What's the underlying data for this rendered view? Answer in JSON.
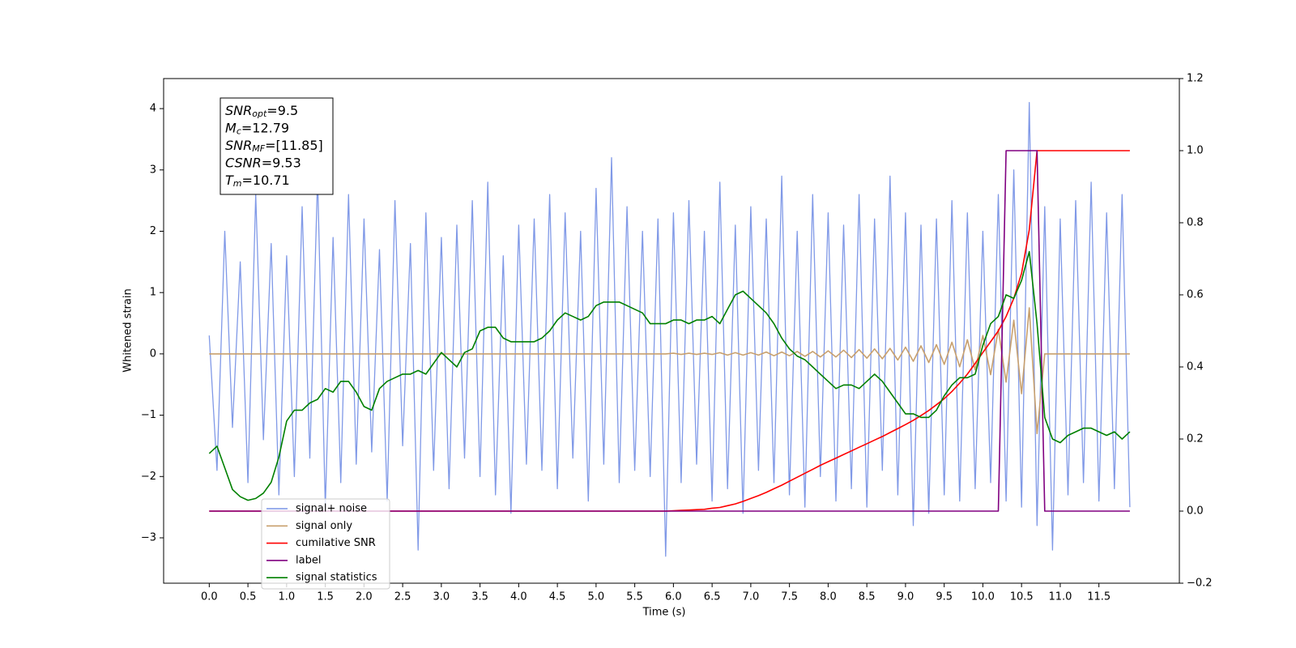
{
  "chart_data": {
    "type": "line",
    "xlabel": "Time (s)",
    "ylabel": "Whitened strain",
    "xlim": [
      -0.59,
      12.54
    ],
    "ylim": [
      -3.74,
      4.49
    ],
    "y2lim": [
      -0.2,
      1.2
    ],
    "xticks": [
      {
        "value": 0,
        "label": "0.0"
      },
      0.5,
      {
        "value": 1,
        "label": "1.0"
      },
      1.5,
      {
        "value": 2,
        "label": "2.0"
      },
      2.5,
      {
        "value": 3,
        "label": "3.0"
      },
      3.5,
      {
        "value": 4,
        "label": "4.0"
      },
      4.5,
      {
        "value": 5,
        "label": "5.0"
      },
      5.5,
      {
        "value": 6,
        "label": "6.0"
      },
      6.5,
      {
        "value": 7,
        "label": "7.0"
      },
      7.5,
      {
        "value": 8,
        "label": "8.0"
      },
      8.5,
      {
        "value": 9,
        "label": "9.0"
      },
      9.5,
      {
        "value": 10,
        "label": "10.0"
      },
      10.5,
      {
        "value": 11,
        "label": "11.0"
      },
      11.5
    ],
    "yticks": [
      {
        "value": -3,
        "label": "−3"
      },
      {
        "value": -2,
        "label": "−2"
      },
      {
        "value": -1,
        "label": "−1"
      },
      0,
      1,
      2,
      3,
      4
    ],
    "y2ticks": [
      {
        "value": -0.2,
        "label": "−0.2"
      },
      {
        "value": 0,
        "label": "0.0"
      },
      0.2,
      0.4,
      0.6,
      0.8,
      {
        "value": 1,
        "label": "1.0"
      },
      1.2
    ],
    "legend": "lower left",
    "annotation": [
      [
        "SNR",
        "opt",
        "=9.5"
      ],
      [
        "M",
        "c",
        "=12.79"
      ],
      [
        "SNR",
        "MF",
        "=[11.85]"
      ],
      [
        "CSNR",
        "",
        "=9.53"
      ],
      [
        "T",
        "m",
        "=10.71"
      ]
    ],
    "x": [
      0,
      0.1,
      0.2,
      0.3,
      0.4,
      0.5,
      0.6,
      0.7,
      0.8,
      0.9,
      1,
      1.1,
      1.2,
      1.3,
      1.4,
      1.5,
      1.6,
      1.7,
      1.8,
      1.9,
      2,
      2.1,
      2.2,
      2.3,
      2.4,
      2.5,
      2.6,
      2.7,
      2.8,
      2.9,
      3,
      3.1,
      3.2,
      3.3,
      3.4,
      3.5,
      3.6,
      3.7,
      3.8,
      3.9,
      4,
      4.1,
      4.2,
      4.3,
      4.4,
      4.5,
      4.6,
      4.7,
      4.8,
      4.9,
      5,
      5.1,
      5.2,
      5.3,
      5.4,
      5.5,
      5.6,
      5.7,
      5.8,
      5.9,
      6,
      6.1,
      6.2,
      6.3,
      6.4,
      6.5,
      6.6,
      6.7,
      6.8,
      6.9,
      7,
      7.1,
      7.2,
      7.3,
      7.4,
      7.5,
      7.6,
      7.7,
      7.8,
      7.9,
      8,
      8.1,
      8.2,
      8.3,
      8.4,
      8.5,
      8.6,
      8.7,
      8.8,
      8.9,
      9,
      9.1,
      9.2,
      9.3,
      9.4,
      9.5,
      9.6,
      9.7,
      9.8,
      9.9,
      10,
      10.1,
      10.2,
      10.3,
      10.4,
      10.5,
      10.6,
      10.7,
      10.8,
      10.9,
      11,
      11.1,
      11.2,
      11.3,
      11.4,
      11.5,
      11.6,
      11.7,
      11.8,
      11.9
    ],
    "series": [
      {
        "name": "signal+ noise",
        "color": "#7994e6",
        "values": [
          0.3,
          -1.9,
          2.0,
          -1.2,
          1.5,
          -2.1,
          2.6,
          -1.4,
          1.8,
          -2.3,
          1.6,
          -2.0,
          2.4,
          -1.7,
          2.9,
          -2.5,
          1.9,
          -2.1,
          2.6,
          -1.8,
          2.2,
          -1.6,
          1.7,
          -2.4,
          2.5,
          -1.5,
          1.8,
          -3.2,
          2.3,
          -1.9,
          1.9,
          -2.2,
          2.1,
          -1.7,
          2.5,
          -2.0,
          2.8,
          -2.3,
          1.6,
          -2.6,
          2.1,
          -1.8,
          2.2,
          -1.9,
          2.6,
          -2.2,
          2.3,
          -1.7,
          2.0,
          -2.4,
          2.7,
          -1.8,
          3.2,
          -2.1,
          2.4,
          -1.9,
          2.0,
          -2.0,
          2.2,
          -3.3,
          2.3,
          -2.1,
          2.5,
          -1.8,
          2.0,
          -2.4,
          2.8,
          -2.2,
          2.1,
          -2.6,
          2.4,
          -1.9,
          2.2,
          -2.1,
          2.9,
          -2.3,
          2.0,
          -2.5,
          2.6,
          -2.0,
          2.3,
          -2.4,
          2.1,
          -2.2,
          2.6,
          -2.5,
          2.2,
          -1.9,
          2.9,
          -2.3,
          2.3,
          -2.8,
          2.1,
          -2.6,
          2.2,
          -2.3,
          2.5,
          -2.4,
          2.3,
          -2.2,
          2.0,
          -2.1,
          2.6,
          -2.4,
          3.0,
          -2.5,
          4.1,
          -2.8,
          2.4,
          -3.2,
          2.2,
          -2.3,
          2.5,
          -2.1,
          2.8,
          -2.4,
          2.3,
          -2.2,
          2.6,
          -2.5
        ]
      },
      {
        "name": "signal only",
        "color": "#c8a06e",
        "values": [
          0,
          0,
          0,
          0,
          0,
          0,
          0,
          0,
          0,
          0,
          0,
          0,
          0,
          0,
          0,
          0,
          0,
          0,
          0,
          0,
          0,
          0,
          0,
          0,
          0,
          0,
          0,
          0,
          0,
          0,
          0,
          0,
          0,
          0,
          0,
          0,
          0,
          0,
          0,
          0,
          0,
          0,
          0,
          0,
          0,
          0,
          0,
          0,
          0,
          0,
          0,
          0,
          0,
          0,
          0,
          0,
          0,
          0,
          0,
          0,
          0.01,
          -0.01,
          0.01,
          -0.01,
          0.01,
          -0.01,
          0.02,
          -0.02,
          0.02,
          -0.02,
          0.02,
          -0.02,
          0.03,
          -0.03,
          0.03,
          -0.03,
          0.04,
          -0.04,
          0.04,
          -0.05,
          0.05,
          -0.05,
          0.06,
          -0.06,
          0.07,
          -0.07,
          0.08,
          -0.08,
          0.09,
          -0.1,
          0.11,
          -0.12,
          0.13,
          -0.14,
          0.15,
          -0.17,
          0.19,
          -0.21,
          0.23,
          -0.26,
          0.3,
          -0.34,
          0.4,
          -0.46,
          0.55,
          -0.65,
          0.75,
          -1.3,
          0,
          0,
          0,
          0,
          0,
          0,
          0,
          0,
          0,
          0,
          0,
          0
        ]
      },
      {
        "name": "cumilative SNR",
        "color": "#ff0000",
        "axis": "y2",
        "values": [
          0,
          0,
          0,
          0,
          0,
          0,
          0,
          0,
          0,
          0,
          0,
          0,
          0,
          0,
          0,
          0,
          0,
          0,
          0,
          0,
          0,
          0,
          0,
          0,
          0,
          0,
          0,
          0,
          0,
          0,
          0,
          0,
          0,
          0,
          0,
          0,
          0,
          0,
          0,
          0,
          0,
          0,
          0,
          0,
          0,
          0,
          0,
          0,
          0,
          0,
          0,
          0,
          0,
          0,
          0,
          0,
          0,
          0,
          0,
          0,
          0.001,
          0.002,
          0.003,
          0.004,
          0.005,
          0.008,
          0.01,
          0.015,
          0.02,
          0.027,
          0.035,
          0.043,
          0.052,
          0.062,
          0.072,
          0.083,
          0.094,
          0.105,
          0.116,
          0.127,
          0.137,
          0.147,
          0.157,
          0.167,
          0.177,
          0.187,
          0.197,
          0.207,
          0.218,
          0.229,
          0.24,
          0.252,
          0.265,
          0.279,
          0.295,
          0.312,
          0.332,
          0.355,
          0.38,
          0.41,
          0.44,
          0.47,
          0.5,
          0.54,
          0.59,
          0.66,
          0.78,
          1,
          1,
          1,
          1,
          1,
          1,
          1,
          1,
          1,
          1,
          1,
          1,
          1
        ]
      },
      {
        "name": "label",
        "color": "#800080",
        "axis": "y2",
        "values": [
          0,
          0,
          0,
          0,
          0,
          0,
          0,
          0,
          0,
          0,
          0,
          0,
          0,
          0,
          0,
          0,
          0,
          0,
          0,
          0,
          0,
          0,
          0,
          0,
          0,
          0,
          0,
          0,
          0,
          0,
          0,
          0,
          0,
          0,
          0,
          0,
          0,
          0,
          0,
          0,
          0,
          0,
          0,
          0,
          0,
          0,
          0,
          0,
          0,
          0,
          0,
          0,
          0,
          0,
          0,
          0,
          0,
          0,
          0,
          0,
          0,
          0,
          0,
          0,
          0,
          0,
          0,
          0,
          0,
          0,
          0,
          0,
          0,
          0,
          0,
          0,
          0,
          0,
          0,
          0,
          0,
          0,
          0,
          0,
          0,
          0,
          0,
          0,
          0,
          0,
          0,
          0,
          0,
          0,
          0,
          0,
          0,
          0,
          0,
          0,
          0,
          0,
          0,
          1,
          1,
          1,
          1,
          1,
          0,
          0,
          0,
          0,
          0,
          0,
          0,
          0,
          0,
          0,
          0,
          0
        ]
      },
      {
        "name": "signal statistics",
        "color": "#008000",
        "axis": "y2",
        "values": [
          0.16,
          0.18,
          0.12,
          0.06,
          0.04,
          0.03,
          0.035,
          0.05,
          0.08,
          0.15,
          0.25,
          0.28,
          0.28,
          0.3,
          0.31,
          0.34,
          0.33,
          0.36,
          0.36,
          0.33,
          0.29,
          0.28,
          0.34,
          0.36,
          0.37,
          0.38,
          0.38,
          0.39,
          0.38,
          0.41,
          0.44,
          0.42,
          0.4,
          0.44,
          0.45,
          0.5,
          0.51,
          0.51,
          0.48,
          0.47,
          0.47,
          0.47,
          0.47,
          0.48,
          0.5,
          0.53,
          0.55,
          0.54,
          0.53,
          0.54,
          0.57,
          0.58,
          0.58,
          0.58,
          0.57,
          0.56,
          0.55,
          0.52,
          0.52,
          0.52,
          0.53,
          0.53,
          0.52,
          0.53,
          0.53,
          0.54,
          0.52,
          0.56,
          0.6,
          0.61,
          0.59,
          0.57,
          0.55,
          0.52,
          0.48,
          0.45,
          0.43,
          0.42,
          0.4,
          0.38,
          0.36,
          0.34,
          0.35,
          0.35,
          0.34,
          0.36,
          0.38,
          0.36,
          0.33,
          0.3,
          0.27,
          0.27,
          0.26,
          0.26,
          0.28,
          0.32,
          0.35,
          0.37,
          0.37,
          0.38,
          0.46,
          0.52,
          0.54,
          0.6,
          0.59,
          0.64,
          0.72,
          0.52,
          0.26,
          0.2,
          0.19,
          0.21,
          0.22,
          0.23,
          0.23,
          0.22,
          0.21,
          0.22,
          0.2,
          0.22
        ]
      }
    ]
  }
}
